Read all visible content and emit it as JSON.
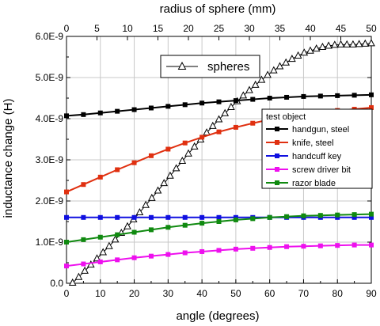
{
  "chart_data": {
    "type": "line",
    "xlabel": "angle (degrees)",
    "x2label": "radius of sphere (mm)",
    "ylabel": "inductance change (H)",
    "xlim": [
      0,
      90
    ],
    "x2lim": [
      0,
      50
    ],
    "ylim": [
      0,
      6e-09
    ],
    "x_ticks": [
      "0",
      "10",
      "20",
      "30",
      "40",
      "50",
      "60",
      "70",
      "80",
      "90"
    ],
    "x2_ticks": [
      "0",
      "5",
      "10",
      "15",
      "20",
      "25",
      "30",
      "35",
      "40",
      "45",
      "50"
    ],
    "y_ticks": [
      "0.0",
      "1.0E-9",
      "2.0E-9",
      "3.0E-9",
      "4.0E-9",
      "5.0E-9",
      "6.0E-9"
    ],
    "grid": true,
    "legend_title": "test object",
    "x": [
      0,
      5,
      10,
      15,
      20,
      25,
      30,
      35,
      40,
      45,
      50,
      55,
      60,
      65,
      70,
      75,
      80,
      85,
      90
    ],
    "series": [
      {
        "name": "handgun, steel",
        "color": "#000000",
        "marker": "square",
        "values": [
          4.07e-09,
          4.1e-09,
          4.14e-09,
          4.18e-09,
          4.22e-09,
          4.26e-09,
          4.3e-09,
          4.34e-09,
          4.38e-09,
          4.41e-09,
          4.44e-09,
          4.47e-09,
          4.5e-09,
          4.52e-09,
          4.54e-09,
          4.55e-09,
          4.56e-09,
          4.57e-09,
          4.58e-09
        ]
      },
      {
        "name": "knife, steel",
        "color": "#e03010",
        "marker": "square",
        "values": [
          2.22e-09,
          2.4e-09,
          2.58e-09,
          2.76e-09,
          2.93e-09,
          3.1e-09,
          3.26e-09,
          3.41e-09,
          3.55e-09,
          3.68e-09,
          3.79e-09,
          3.89e-09,
          3.98e-09,
          4.05e-09,
          4.11e-09,
          4.16e-09,
          4.2e-09,
          4.23e-09,
          4.27e-09
        ]
      },
      {
        "name": "handcuff key",
        "color": "#1010e0",
        "marker": "square",
        "values": [
          1.6e-09,
          1.6e-09,
          1.6e-09,
          1.6e-09,
          1.6e-09,
          1.6e-09,
          1.6e-09,
          1.6e-09,
          1.6e-09,
          1.6e-09,
          1.6e-09,
          1.6e-09,
          1.6e-09,
          1.6e-09,
          1.6e-09,
          1.6e-09,
          1.6e-09,
          1.6e-09,
          1.6e-09
        ]
      },
      {
        "name": "screw driver bit",
        "color": "#ee10ee",
        "marker": "square",
        "values": [
          4.2e-10,
          4.7e-10,
          5.2e-10,
          5.7e-10,
          6.2e-10,
          6.6e-10,
          7e-10,
          7.4e-10,
          7.7e-10,
          8e-10,
          8.3e-10,
          8.5e-10,
          8.7e-10,
          8.9e-10,
          9e-10,
          9.1e-10,
          9.2e-10,
          9.3e-10,
          9.3e-10
        ]
      },
      {
        "name": "razor blade",
        "color": "#108a10",
        "marker": "square",
        "values": [
          1e-09,
          1.06e-09,
          1.12e-09,
          1.18e-09,
          1.24e-09,
          1.3e-09,
          1.36e-09,
          1.41e-09,
          1.46e-09,
          1.5e-09,
          1.54e-09,
          1.57e-09,
          1.6e-09,
          1.62e-09,
          1.64e-09,
          1.65e-09,
          1.66e-09,
          1.67e-09,
          1.68e-09
        ]
      }
    ],
    "spheres": {
      "name": "spheres",
      "color": "#000000",
      "marker": "triangle",
      "x_mm": [
        1,
        2,
        3,
        4,
        5,
        6,
        7,
        8,
        9,
        10,
        11,
        12,
        13,
        14,
        15,
        16,
        17,
        18,
        19,
        20,
        21,
        22,
        23,
        24,
        25,
        26,
        27,
        28,
        29,
        30,
        31,
        32,
        33,
        34,
        35,
        36,
        37,
        38,
        39,
        40,
        41,
        42,
        43,
        44,
        45,
        46,
        47,
        48,
        49,
        50
      ],
      "values": [
        1e-11,
        1.5e-10,
        3e-10,
        4.5e-10,
        6e-10,
        7.5e-10,
        9e-10,
        1.06e-09,
        1.22e-09,
        1.38e-09,
        1.55e-09,
        1.72e-09,
        1.9e-09,
        2.07e-09,
        2.25e-09,
        2.43e-09,
        2.61e-09,
        2.79e-09,
        2.97e-09,
        3.15e-09,
        3.32e-09,
        3.49e-09,
        3.66e-09,
        3.82e-09,
        3.98e-09,
        4.13e-09,
        4.28e-09,
        4.42e-09,
        4.56e-09,
        4.69e-09,
        4.82e-09,
        4.94e-09,
        5.06e-09,
        5.17e-09,
        5.27e-09,
        5.36e-09,
        5.45e-09,
        5.53e-09,
        5.6e-09,
        5.65e-09,
        5.7e-09,
        5.74e-09,
        5.77e-09,
        5.79e-09,
        5.8e-09,
        5.8e-09,
        5.8e-09,
        5.81e-09,
        5.82e-09,
        5.83e-09
      ]
    }
  }
}
